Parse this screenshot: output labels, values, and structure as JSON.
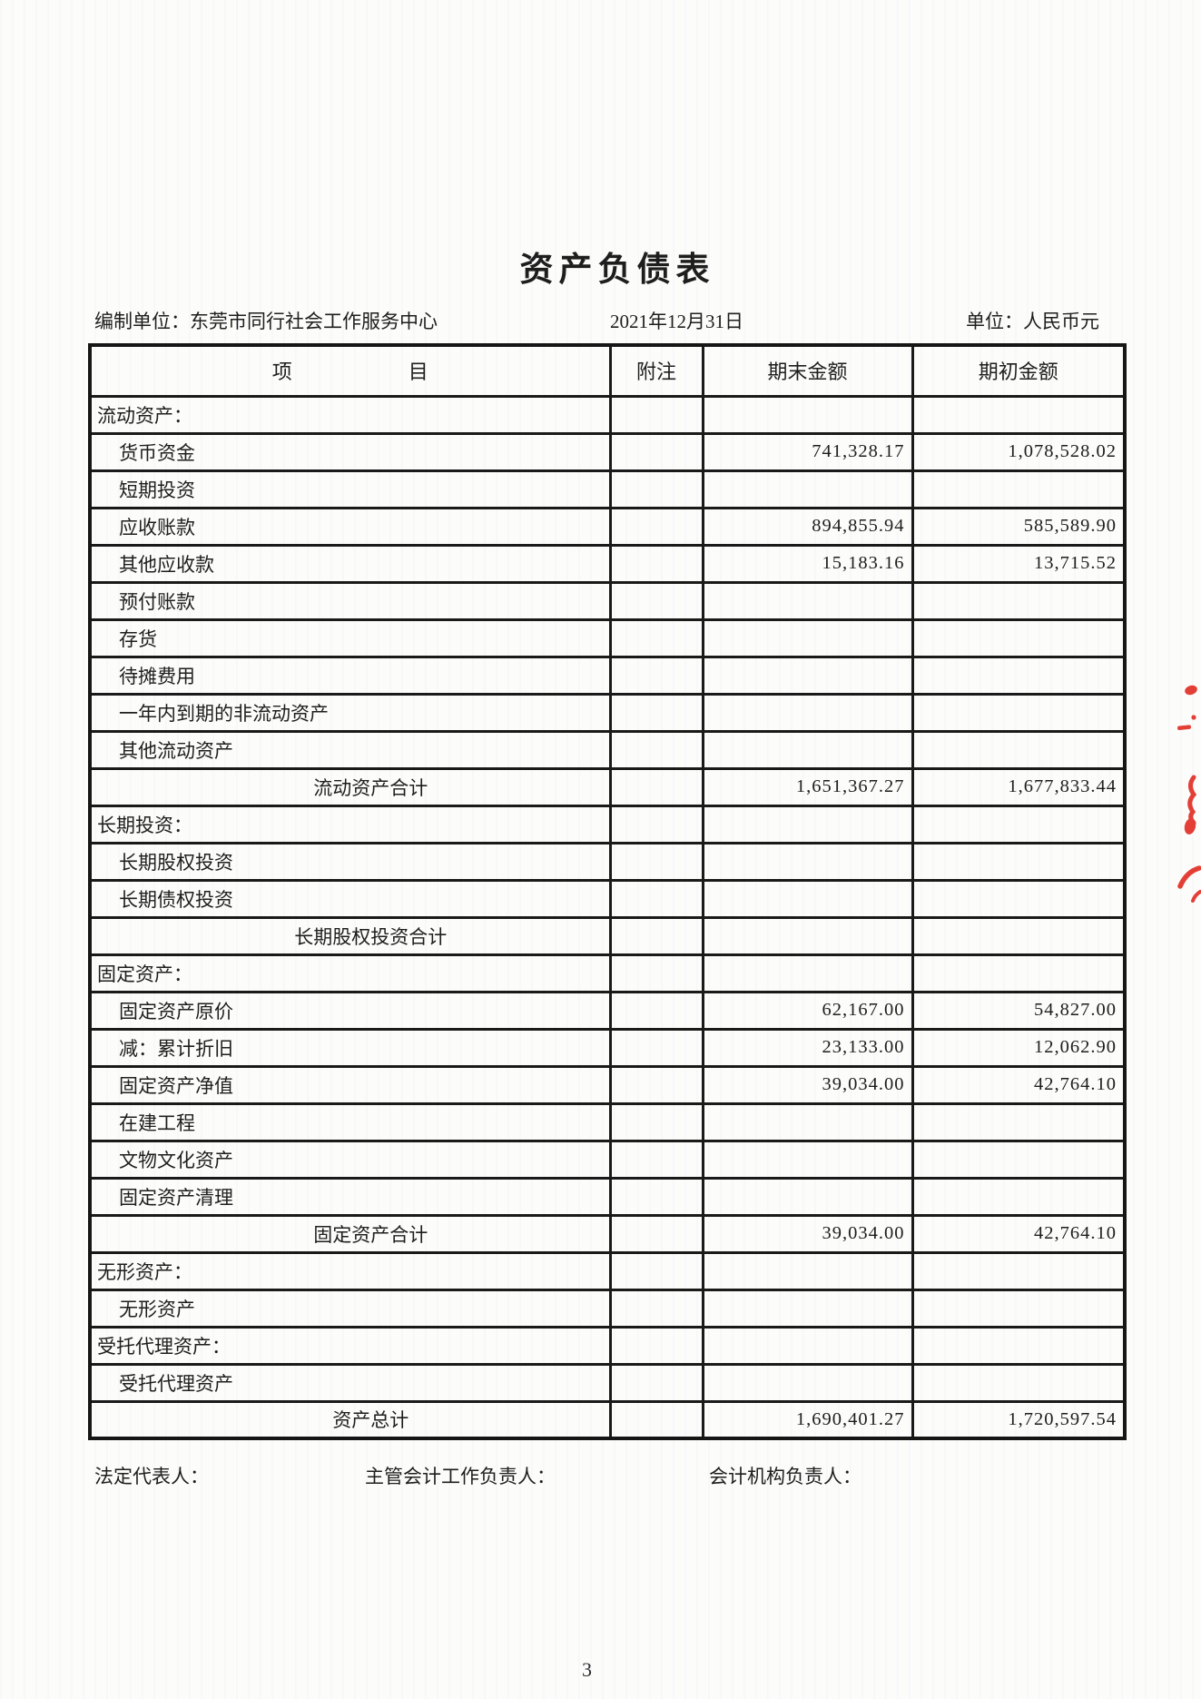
{
  "page": {
    "title": "资产负债表",
    "page_number": "3"
  },
  "header": {
    "prepared_by_label": "编制单位：",
    "prepared_by_value": "东莞市同行社会工作服务中心",
    "report_date": "2021年12月31日",
    "unit_label": "单位：",
    "unit_value": "人民币元"
  },
  "table": {
    "columns": {
      "item_left": "项",
      "item_right": "目",
      "note": "附注",
      "ending": "期末金额",
      "beginning": "期初金额"
    },
    "rows": [
      {
        "label": "流动资产：",
        "note": "",
        "ending": "",
        "beginning": "",
        "style": "section"
      },
      {
        "label": "货币资金",
        "note": "",
        "ending": "741,328.17",
        "beginning": "1,078,528.02",
        "style": "item"
      },
      {
        "label": "短期投资",
        "note": "",
        "ending": "",
        "beginning": "",
        "style": "item"
      },
      {
        "label": "应收账款",
        "note": "",
        "ending": "894,855.94",
        "beginning": "585,589.90",
        "style": "item"
      },
      {
        "label": "其他应收款",
        "note": "",
        "ending": "15,183.16",
        "beginning": "13,715.52",
        "style": "item"
      },
      {
        "label": "预付账款",
        "note": "",
        "ending": "",
        "beginning": "",
        "style": "item"
      },
      {
        "label": "存货",
        "note": "",
        "ending": "",
        "beginning": "",
        "style": "item"
      },
      {
        "label": "待摊费用",
        "note": "",
        "ending": "",
        "beginning": "",
        "style": "item"
      },
      {
        "label": "一年内到期的非流动资产",
        "note": "",
        "ending": "",
        "beginning": "",
        "style": "item"
      },
      {
        "label": "其他流动资产",
        "note": "",
        "ending": "",
        "beginning": "",
        "style": "item"
      },
      {
        "label": "流动资产合计",
        "note": "",
        "ending": "1,651,367.27",
        "beginning": "1,677,833.44",
        "style": "total"
      },
      {
        "label": "长期投资：",
        "note": "",
        "ending": "",
        "beginning": "",
        "style": "section"
      },
      {
        "label": "长期股权投资",
        "note": "",
        "ending": "",
        "beginning": "",
        "style": "item"
      },
      {
        "label": "长期债权投资",
        "note": "",
        "ending": "",
        "beginning": "",
        "style": "item"
      },
      {
        "label": "长期股权投资合计",
        "note": "",
        "ending": "",
        "beginning": "",
        "style": "total"
      },
      {
        "label": "固定资产：",
        "note": "",
        "ending": "",
        "beginning": "",
        "style": "section"
      },
      {
        "label": "固定资产原价",
        "note": "",
        "ending": "62,167.00",
        "beginning": "54,827.00",
        "style": "item"
      },
      {
        "label": "减：累计折旧",
        "note": "",
        "ending": "23,133.00",
        "beginning": "12,062.90",
        "style": "item"
      },
      {
        "label": "固定资产净值",
        "note": "",
        "ending": "39,034.00",
        "beginning": "42,764.10",
        "style": "item"
      },
      {
        "label": "在建工程",
        "note": "",
        "ending": "",
        "beginning": "",
        "style": "item"
      },
      {
        "label": "文物文化资产",
        "note": "",
        "ending": "",
        "beginning": "",
        "style": "item"
      },
      {
        "label": "固定资产清理",
        "note": "",
        "ending": "",
        "beginning": "",
        "style": "item"
      },
      {
        "label": "固定资产合计",
        "note": "",
        "ending": "39,034.00",
        "beginning": "42,764.10",
        "style": "total"
      },
      {
        "label": "无形资产：",
        "note": "",
        "ending": "",
        "beginning": "",
        "style": "section"
      },
      {
        "label": "无形资产",
        "note": "",
        "ending": "",
        "beginning": "",
        "style": "item"
      },
      {
        "label": "受托代理资产：",
        "note": "",
        "ending": "",
        "beginning": "",
        "style": "section"
      },
      {
        "label": "受托代理资产",
        "note": "",
        "ending": "",
        "beginning": "",
        "style": "item"
      },
      {
        "label": "资产总计",
        "note": "",
        "ending": "1,690,401.27",
        "beginning": "1,720,597.54",
        "style": "total"
      }
    ]
  },
  "footer": {
    "legal_representative_label": "法定代表人：",
    "accounting_supervisor_label": "主管会计工作负责人：",
    "accounting_head_label": "会计机构负责人："
  },
  "stamp": {
    "color": "#e0251b"
  }
}
